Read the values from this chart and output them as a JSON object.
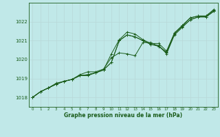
{
  "title": "Graphe pression niveau de la mer (hPa)",
  "bg_color": "#c0e8e8",
  "grid_color": "#aad4d4",
  "line_color": "#1a5c1a",
  "xlim": [
    -0.5,
    23.5
  ],
  "ylim": [
    1017.5,
    1023.0
  ],
  "yticks": [
    1018,
    1019,
    1020,
    1021,
    1022
  ],
  "xticks": [
    0,
    1,
    2,
    3,
    4,
    5,
    6,
    7,
    8,
    9,
    10,
    11,
    12,
    13,
    14,
    15,
    16,
    17,
    18,
    19,
    20,
    21,
    22,
    23
  ],
  "series": [
    [
      1018.0,
      1018.3,
      1018.5,
      1018.7,
      1018.85,
      1018.95,
      1019.15,
      1019.2,
      1019.3,
      1019.45,
      1020.3,
      1021.05,
      1021.45,
      1021.35,
      1021.05,
      1020.85,
      1020.85,
      1020.45,
      1021.4,
      1021.8,
      1022.2,
      1022.3,
      1022.3,
      1022.65
    ],
    [
      1018.0,
      1018.3,
      1018.5,
      1018.7,
      1018.85,
      1018.95,
      1019.15,
      1019.2,
      1019.3,
      1019.45,
      1019.85,
      1021.0,
      1021.3,
      1021.2,
      1021.0,
      1020.8,
      1020.75,
      1020.3,
      1021.3,
      1021.7,
      1022.1,
      1022.25,
      1022.25,
      1022.55
    ],
    [
      1018.0,
      1018.3,
      1018.5,
      1018.75,
      1018.85,
      1018.95,
      1019.2,
      1019.35,
      1019.35,
      1019.5,
      1020.1,
      1020.35,
      1020.3,
      1020.2,
      1020.9,
      1020.9,
      1020.7,
      1020.4,
      1021.4,
      1021.8,
      1022.2,
      1022.3,
      1022.3,
      1022.6
    ],
    [
      1018.0,
      1018.3,
      1018.5,
      1018.7,
      1018.85,
      1018.95,
      1019.15,
      1019.15,
      1019.3,
      1019.45,
      1019.85,
      1021.0,
      1021.3,
      1021.2,
      1021.0,
      1020.8,
      1020.7,
      1020.35,
      1021.35,
      1021.75,
      1022.1,
      1022.25,
      1022.25,
      1022.55
    ]
  ]
}
